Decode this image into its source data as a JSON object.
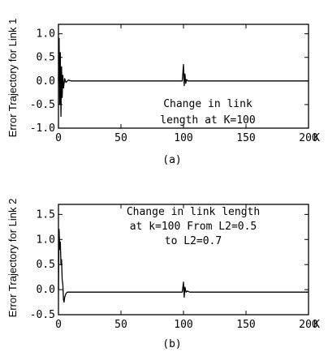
{
  "chart_data": [
    {
      "type": "line",
      "caption": "(a)",
      "ylabel": "Error Trajectory for Link 1",
      "annotation": [
        "Change in link",
        "length at K=100"
      ],
      "xlim": [
        0,
        200
      ],
      "ylim": [
        -1.0,
        1.2
      ],
      "x_ticks": [
        0,
        50,
        100,
        150,
        200
      ],
      "x_tick_labels": [
        "0",
        "50",
        "100",
        "150",
        "200"
      ],
      "x_unit_suffix": "K",
      "y_ticks": [
        -1.0,
        -0.5,
        0.0,
        0.5,
        1.0
      ],
      "y_tick_labels": [
        "-1.0",
        "-0.5",
        "0.0",
        "0.5",
        "1.0"
      ],
      "series": [
        {
          "x": [
            0,
            0.5,
            1,
            1.5,
            2,
            2.5,
            3,
            3.5,
            4,
            5,
            6,
            8,
            10,
            20,
            50,
            99,
            100,
            100.6,
            101.2,
            101.8,
            102.5,
            103.5,
            105,
            120,
            150,
            200
          ],
          "y": [
            0,
            0.9,
            -0.5,
            0.6,
            -0.75,
            0.3,
            -0.35,
            0.12,
            -0.15,
            0.05,
            -0.03,
            0.02,
            0,
            0,
            0,
            0,
            0.35,
            -0.1,
            0.15,
            -0.05,
            0.03,
            0,
            0,
            0,
            0,
            0
          ]
        }
      ]
    },
    {
      "type": "line",
      "caption": "(b)",
      "ylabel": "Error Trajectory for Link 2",
      "annotation": [
        "Change in link length",
        "at k=100 From L2=0.5",
        "to L2=0.7"
      ],
      "xlim": [
        0,
        200
      ],
      "ylim": [
        -0.5,
        1.7
      ],
      "x_ticks": [
        0,
        50,
        100,
        150,
        200
      ],
      "x_tick_labels": [
        "0",
        "50",
        "100",
        "150",
        "200"
      ],
      "x_unit_suffix": "K",
      "y_ticks": [
        -0.5,
        0.0,
        0.5,
        1.0,
        1.5
      ],
      "y_tick_labels": [
        "-0.5",
        "0.0",
        "0.5",
        "1.0",
        "1.5"
      ],
      "series": [
        {
          "x": [
            0,
            0.5,
            1,
            1.5,
            2,
            2.5,
            3,
            3.5,
            4,
            4.5,
            5,
            6,
            7,
            8,
            10,
            15,
            50,
            99,
            100,
            100.6,
            101.2,
            102,
            103,
            105,
            150,
            200
          ],
          "y": [
            0,
            1.2,
            0.8,
            0.95,
            0.5,
            0.6,
            0.2,
            0.1,
            -0.2,
            -0.25,
            -0.15,
            -0.08,
            -0.05,
            -0.05,
            -0.05,
            -0.05,
            -0.05,
            -0.05,
            0.15,
            -0.15,
            0.05,
            -0.05,
            -0.03,
            -0.05,
            -0.05,
            -0.05
          ]
        }
      ]
    }
  ]
}
